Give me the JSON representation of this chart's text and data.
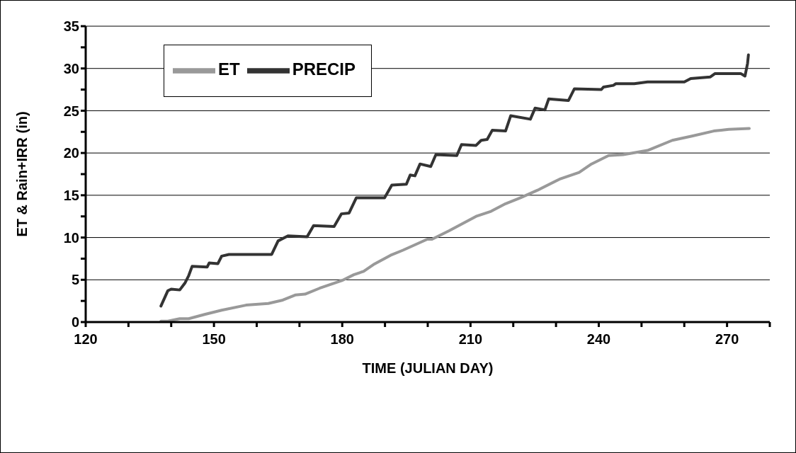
{
  "chart_data": {
    "type": "line",
    "xlabel": "TIME (JULIAN DAY)",
    "ylabel": "ET & Rain+IRR (in)",
    "xlim": [
      120,
      280
    ],
    "xticks": [
      120,
      {
        "value": 130,
        "label": null
      },
      {
        "value": 140,
        "label": null
      },
      150,
      {
        "value": 160,
        "label": null
      },
      {
        "value": 170,
        "label": null
      },
      180,
      {
        "value": 190,
        "label": null
      },
      {
        "value": 200,
        "label": null
      },
      210,
      {
        "value": 220,
        "label": null
      },
      {
        "value": 230,
        "label": null
      },
      240,
      {
        "value": 250,
        "label": null
      },
      {
        "value": 260,
        "label": null
      },
      270,
      {
        "value": 280,
        "label": null
      }
    ],
    "ylim": [
      0,
      35
    ],
    "yticks": [
      0,
      {
        "value": 2.5,
        "label": null
      },
      5,
      {
        "value": 7.5,
        "label": null
      },
      10,
      {
        "value": 12.5,
        "label": null
      },
      15,
      {
        "value": 17.5,
        "label": null
      },
      20,
      {
        "value": 22.5,
        "label": null
      },
      25,
      {
        "value": 27.5,
        "label": null
      },
      30,
      {
        "value": 32.5,
        "label": null
      },
      35
    ],
    "grid": "y",
    "legend": "top left",
    "marker": "none",
    "line_style": "solid",
    "series": [
      {
        "name": "ET",
        "color": "#999999",
        "x": [
          137.6,
          139.2,
          142,
          144.1,
          147.8,
          151.8,
          157.5,
          162.7,
          166.1,
          169,
          171.3,
          174.7,
          179.9,
          182.7,
          185,
          187.3,
          191.3,
          194.2,
          199.9,
          201,
          205,
          211.3,
          214.8,
          218.2,
          221.7,
          225.7,
          230.8,
          235.4,
          238.3,
          242.3,
          245.7,
          251.4,
          257.2,
          261.8,
          266.9,
          270.4,
          275.2
        ],
        "values": [
          0.1,
          0.1,
          0.4,
          0.4,
          0.9,
          1.4,
          2,
          2.2,
          2.6,
          3.2,
          3.3,
          4,
          4.9,
          5.6,
          6,
          6.8,
          7.9,
          8.5,
          9.8,
          9.8,
          10.8,
          12.5,
          13.1,
          14,
          14.7,
          15.6,
          16.9,
          17.7,
          18.7,
          19.7,
          19.8,
          20.3,
          21.5,
          22,
          22.6,
          22.8,
          22.9
        ]
      },
      {
        "name": "PRECIP",
        "color": "#333333",
        "x": [
          137.6,
          139.2,
          140,
          142,
          143.2,
          144.1,
          144.9,
          148.4,
          148.9,
          150.9,
          151.8,
          153.5,
          163.5,
          165,
          167.3,
          171.8,
          173.3,
          178.1,
          179.8,
          181.6,
          183.3,
          189.9,
          191.6,
          195,
          195.9,
          197,
          198.2,
          200.7,
          201.9,
          206.8,
          207.9,
          211.3,
          212.5,
          213.9,
          215.1,
          218.2,
          219.4,
          224,
          225.1,
          227.4,
          228.3,
          232.9,
          234.3,
          240.6,
          241.1,
          243.4,
          244,
          248.3,
          251.4,
          260,
          261.5,
          266.1,
          267.2,
          273.2,
          274.2,
          274.8,
          275
        ],
        "values": [
          1.9,
          3.7,
          3.9,
          3.8,
          4.6,
          5.5,
          6.6,
          6.5,
          7,
          6.9,
          7.8,
          8,
          8,
          9.6,
          10.2,
          10.1,
          11.4,
          11.3,
          12.8,
          12.9,
          14.7,
          14.7,
          16.2,
          16.3,
          17.4,
          17.3,
          18.7,
          18.4,
          19.8,
          19.7,
          21,
          20.9,
          21.5,
          21.6,
          22.7,
          22.6,
          24.4,
          24,
          25.3,
          25.1,
          26.4,
          26.2,
          27.6,
          27.5,
          27.8,
          28,
          28.2,
          28.2,
          28.4,
          28.4,
          28.8,
          29,
          29.4,
          29.4,
          29.1,
          30.6,
          31.6
        ]
      }
    ]
  }
}
